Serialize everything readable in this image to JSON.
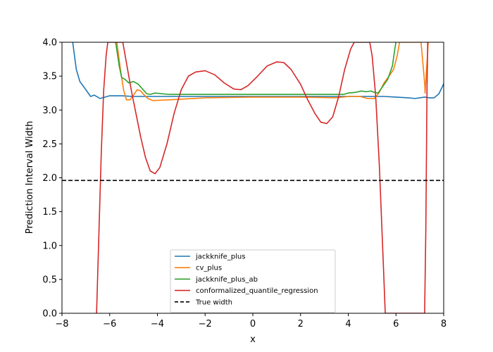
{
  "chart_data": {
    "type": "line",
    "title": "",
    "xlabel": "x",
    "ylabel": "Prediction Interval Width",
    "xlim": [
      -8,
      8
    ],
    "ylim": [
      0,
      4
    ],
    "xticks": [
      -8,
      -6,
      -4,
      -2,
      0,
      2,
      4,
      6,
      8
    ],
    "xtick_labels": [
      "−8",
      "−6",
      "−4",
      "−2",
      "0",
      "2",
      "4",
      "6",
      "8"
    ],
    "yticks": [
      0,
      0.5,
      1,
      1.5,
      2,
      2.5,
      3,
      3.5,
      4
    ],
    "ytick_labels": [
      "0.0",
      "0.5",
      "1.0",
      "1.5",
      "2.0",
      "2.5",
      "3.0",
      "3.5",
      "4.0"
    ],
    "grid": false,
    "legend_position": "lower-center",
    "series": [
      {
        "name": "jackknife_plus",
        "color": "#1f77b4",
        "style": "solid",
        "points": [
          [
            -7.55,
            4.0
          ],
          [
            -7.4,
            3.6
          ],
          [
            -7.25,
            3.42
          ],
          [
            -7.0,
            3.3
          ],
          [
            -6.8,
            3.2
          ],
          [
            -6.65,
            3.22
          ],
          [
            -6.4,
            3.17
          ],
          [
            -6.2,
            3.19
          ],
          [
            -6.0,
            3.21
          ],
          [
            -5.5,
            3.21
          ],
          [
            -5.0,
            3.2
          ],
          [
            -4.0,
            3.2
          ],
          [
            -2.0,
            3.2
          ],
          [
            0.0,
            3.2
          ],
          [
            2.0,
            3.2
          ],
          [
            4.0,
            3.2
          ],
          [
            5.0,
            3.2
          ],
          [
            5.5,
            3.2
          ],
          [
            6.0,
            3.19
          ],
          [
            6.5,
            3.18
          ],
          [
            6.8,
            3.17
          ],
          [
            7.0,
            3.18
          ],
          [
            7.2,
            3.19
          ],
          [
            7.4,
            3.18
          ],
          [
            7.6,
            3.18
          ],
          [
            7.8,
            3.24
          ],
          [
            7.95,
            3.35
          ],
          [
            8.0,
            3.39
          ]
        ]
      },
      {
        "name": "cv_plus",
        "color": "#ff7f0e",
        "style": "solid",
        "points": [
          [
            -5.7,
            4.0
          ],
          [
            -5.55,
            3.6
          ],
          [
            -5.42,
            3.3
          ],
          [
            -5.3,
            3.15
          ],
          [
            -5.15,
            3.15
          ],
          [
            -5.0,
            3.22
          ],
          [
            -4.85,
            3.3
          ],
          [
            -4.7,
            3.28
          ],
          [
            -4.55,
            3.22
          ],
          [
            -4.4,
            3.17
          ],
          [
            -4.2,
            3.14
          ],
          [
            -3.5,
            3.15
          ],
          [
            -2.5,
            3.17
          ],
          [
            -2.0,
            3.18
          ],
          [
            0.0,
            3.19
          ],
          [
            2.0,
            3.19
          ],
          [
            3.5,
            3.18
          ],
          [
            4.0,
            3.2
          ],
          [
            4.5,
            3.2
          ],
          [
            4.8,
            3.17
          ],
          [
            5.1,
            3.17
          ],
          [
            5.3,
            3.26
          ],
          [
            5.5,
            3.4
          ],
          [
            5.75,
            3.52
          ],
          [
            5.9,
            3.6
          ],
          [
            6.05,
            3.8
          ],
          [
            6.15,
            4.0
          ],
          [
            7.05,
            4.0
          ],
          [
            7.15,
            3.6
          ],
          [
            7.2,
            3.4
          ],
          [
            7.22,
            3.25
          ],
          [
            7.28,
            3.6
          ],
          [
            7.32,
            3.8
          ],
          [
            7.35,
            4.0
          ]
        ]
      },
      {
        "name": "jackknife_plus_ab",
        "color": "#2ca02c",
        "style": "solid",
        "points": [
          [
            -5.75,
            4.0
          ],
          [
            -5.6,
            3.65
          ],
          [
            -5.5,
            3.48
          ],
          [
            -5.35,
            3.45
          ],
          [
            -5.2,
            3.4
          ],
          [
            -5.0,
            3.42
          ],
          [
            -4.8,
            3.38
          ],
          [
            -4.6,
            3.3
          ],
          [
            -4.45,
            3.24
          ],
          [
            -4.3,
            3.23
          ],
          [
            -4.1,
            3.25
          ],
          [
            -3.5,
            3.23
          ],
          [
            -2.0,
            3.23
          ],
          [
            0.0,
            3.23
          ],
          [
            2.0,
            3.23
          ],
          [
            3.8,
            3.23
          ],
          [
            4.0,
            3.25
          ],
          [
            4.3,
            3.26
          ],
          [
            4.55,
            3.28
          ],
          [
            4.75,
            3.27
          ],
          [
            4.95,
            3.28
          ],
          [
            5.1,
            3.26
          ],
          [
            5.25,
            3.25
          ],
          [
            5.45,
            3.35
          ],
          [
            5.65,
            3.45
          ],
          [
            5.85,
            3.65
          ],
          [
            5.95,
            3.9
          ],
          [
            6.0,
            4.0
          ]
        ]
      },
      {
        "name": "conformalized_quantile_regression",
        "color": "#d62728",
        "style": "solid",
        "points": [
          [
            -6.55,
            0.0
          ],
          [
            -6.45,
            1.2
          ],
          [
            -6.35,
            2.4
          ],
          [
            -6.25,
            3.3
          ],
          [
            -6.15,
            3.8
          ],
          [
            -6.08,
            4.0
          ],
          [
            -5.45,
            4.0
          ],
          [
            -5.3,
            3.7
          ],
          [
            -5.1,
            3.3
          ],
          [
            -4.9,
            2.95
          ],
          [
            -4.7,
            2.6
          ],
          [
            -4.5,
            2.3
          ],
          [
            -4.3,
            2.1
          ],
          [
            -4.1,
            2.06
          ],
          [
            -3.9,
            2.15
          ],
          [
            -3.6,
            2.5
          ],
          [
            -3.3,
            2.95
          ],
          [
            -3.0,
            3.3
          ],
          [
            -2.7,
            3.5
          ],
          [
            -2.4,
            3.56
          ],
          [
            -2.0,
            3.58
          ],
          [
            -1.6,
            3.52
          ],
          [
            -1.2,
            3.4
          ],
          [
            -0.8,
            3.31
          ],
          [
            -0.5,
            3.3
          ],
          [
            -0.2,
            3.36
          ],
          [
            0.2,
            3.5
          ],
          [
            0.6,
            3.65
          ],
          [
            1.0,
            3.71
          ],
          [
            1.3,
            3.7
          ],
          [
            1.6,
            3.6
          ],
          [
            2.0,
            3.38
          ],
          [
            2.3,
            3.15
          ],
          [
            2.6,
            2.95
          ],
          [
            2.85,
            2.82
          ],
          [
            3.1,
            2.8
          ],
          [
            3.35,
            2.9
          ],
          [
            3.6,
            3.2
          ],
          [
            3.85,
            3.6
          ],
          [
            4.1,
            3.9
          ],
          [
            4.25,
            4.0
          ],
          [
            4.9,
            4.0
          ],
          [
            5.0,
            3.8
          ],
          [
            5.15,
            3.2
          ],
          [
            5.3,
            2.2
          ],
          [
            5.45,
            0.9
          ],
          [
            5.55,
            0.0
          ],
          [
            7.2,
            0.0
          ],
          [
            7.25,
            1.2
          ],
          [
            7.3,
            3.3
          ],
          [
            7.33,
            4.0
          ]
        ]
      },
      {
        "name": "True width",
        "color": "#000000",
        "style": "dashed",
        "points": [
          [
            -8,
            1.96
          ],
          [
            8,
            1.96
          ]
        ]
      }
    ]
  }
}
